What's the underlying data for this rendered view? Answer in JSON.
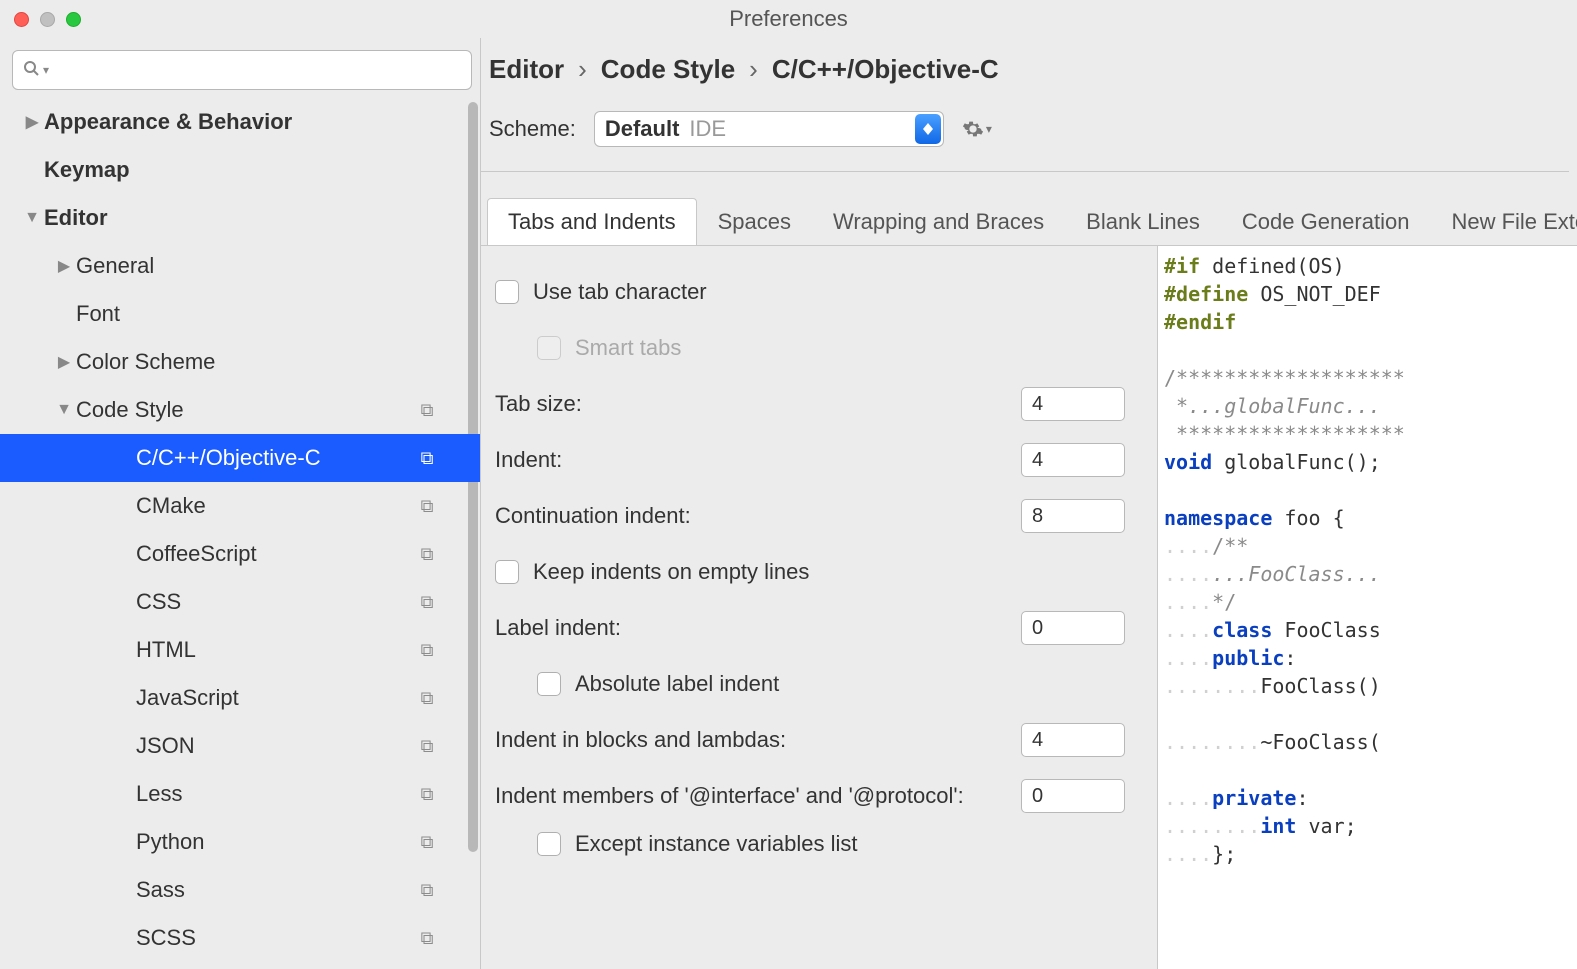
{
  "window": {
    "title": "Preferences"
  },
  "colors": {
    "selection": "#1a5cff",
    "background": "#ececec",
    "border": "#c8c8c8",
    "traffic_close": "#ff5f57",
    "traffic_min": "#c0c0c0",
    "traffic_max": "#28c840"
  },
  "sidebar": {
    "search_placeholder": "",
    "items": [
      {
        "label": "Appearance & Behavior",
        "bold": true,
        "arrow": "right",
        "indent": 1
      },
      {
        "label": "Keymap",
        "bold": true,
        "indent": 1,
        "no_arrow": true
      },
      {
        "label": "Editor",
        "bold": true,
        "arrow": "down",
        "indent": 1
      },
      {
        "label": "General",
        "arrow": "right",
        "indent": 2
      },
      {
        "label": "Font",
        "indent": 2,
        "no_arrow": true
      },
      {
        "label": "Color Scheme",
        "arrow": "right",
        "indent": 2
      },
      {
        "label": "Code Style",
        "arrow": "down",
        "indent": 2,
        "copy": true
      },
      {
        "label": "C/C++/Objective-C",
        "indent": 3,
        "copy": true,
        "selected": true
      },
      {
        "label": "CMake",
        "indent": 3,
        "copy": true
      },
      {
        "label": "CoffeeScript",
        "indent": 3,
        "copy": true
      },
      {
        "label": "CSS",
        "indent": 3,
        "copy": true
      },
      {
        "label": "HTML",
        "indent": 3,
        "copy": true
      },
      {
        "label": "JavaScript",
        "indent": 3,
        "copy": true
      },
      {
        "label": "JSON",
        "indent": 3,
        "copy": true
      },
      {
        "label": "Less",
        "indent": 3,
        "copy": true
      },
      {
        "label": "Python",
        "indent": 3,
        "copy": true
      },
      {
        "label": "Sass",
        "indent": 3,
        "copy": true
      },
      {
        "label": "SCSS",
        "indent": 3,
        "copy": true
      }
    ]
  },
  "breadcrumb": {
    "a": "Editor",
    "b": "Code Style",
    "c": "C/C++/Objective-C",
    "sep": "›"
  },
  "scheme": {
    "label": "Scheme:",
    "value": "Default",
    "scope": "IDE"
  },
  "tabs": [
    "Tabs and Indents",
    "Spaces",
    "Wrapping and Braces",
    "Blank Lines",
    "Code Generation",
    "New File Extensio"
  ],
  "active_tab": 0,
  "form": {
    "use_tab": "Use tab character",
    "smart_tabs": "Smart tabs",
    "tab_size_label": "Tab size:",
    "tab_size": "4",
    "indent_label": "Indent:",
    "indent": "4",
    "cont_label": "Continuation indent:",
    "cont": "8",
    "keep_empty": "Keep indents on empty lines",
    "label_indent_label": "Label indent:",
    "label_indent": "0",
    "abs_label": "Absolute label indent",
    "blocks_label": "Indent in blocks and lambdas:",
    "blocks": "4",
    "iface_label": "Indent members of '@interface' and '@protocol':",
    "iface": "0",
    "except_label": "Except instance variables list"
  },
  "preview": {
    "l1a": "#if",
    "l1b": " defined(OS)",
    "l2a": "#define",
    "l2b": " OS_NOT_DEF",
    "l3": "#endif",
    "l5": "/*******************",
    "l6": " *...globalFunc...",
    "l7": " *******************",
    "l8a": "void",
    "l8b": " globalFunc();",
    "l10a": "namespace",
    "l10b": " foo {",
    "l11": "    /**",
    "l12": "    ...FooClass...",
    "l13": "    */",
    "l14a": "    ",
    "l14b": "class",
    "l14c": " FooClass",
    "l15a": "    ",
    "l15b": "public",
    "l15c": ":",
    "l16": "        FooClass()",
    "l18": "        ~FooClass(",
    "l20a": "    ",
    "l20b": "private",
    "l20c": ":",
    "l21a": "        ",
    "l21b": "int",
    "l21c": " var;",
    "l22": "    };"
  }
}
